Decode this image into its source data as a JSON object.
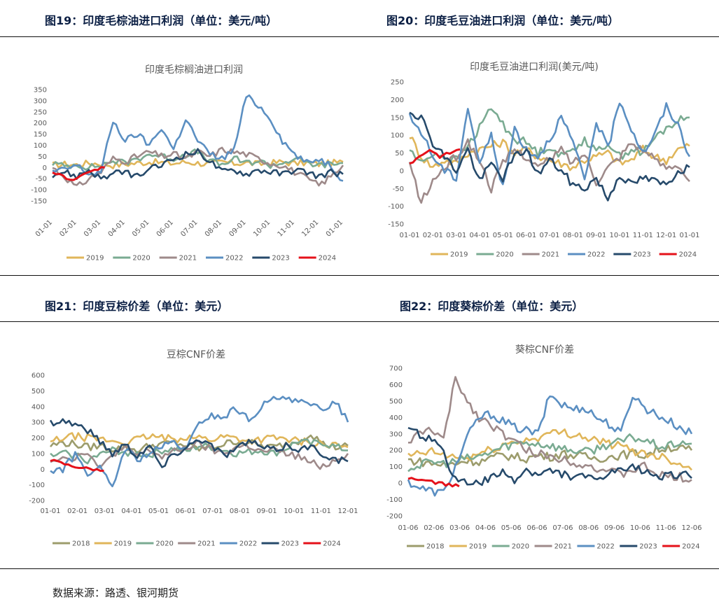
{
  "headers": {
    "fig19": "图19：印度毛棕油进口利润（单位：美元/吨）",
    "fig20": "图20：印度毛豆油进口利润（单位：美元/吨）",
    "fig21": "图21：印度豆棕价差（单位：美元）",
    "fig22": "图22：印度葵棕价差（单位：美元）"
  },
  "source": "数据来源：路透、银河期货",
  "colors": {
    "2018": "#9c9c6c",
    "2019": "#e0b65a",
    "2020": "#7aab92",
    "2021": "#9e8a8a",
    "2022": "#5b8fc2",
    "2023": "#264a6b",
    "2024": "#e5111a"
  },
  "chart_data": [
    {
      "id": "fig19",
      "type": "line",
      "title": "印度毛棕榈油进口利润",
      "ylim": [
        -150,
        350
      ],
      "yticks": [
        -150,
        -100,
        -50,
        0,
        50,
        100,
        150,
        200,
        250,
        300,
        350
      ],
      "x_labels": [
        "01-01",
        "02-01",
        "03-01",
        "04-01",
        "05-01",
        "06-01",
        "07-01",
        "08-01",
        "09-01",
        "10-01",
        "11-01",
        "12-01",
        "01-01"
      ],
      "x_label_rotate": true,
      "series": [
        {
          "name": "2019",
          "values": [
            10,
            15,
            12,
            20,
            18,
            10,
            15,
            20,
            25,
            22,
            18,
            25,
            20,
            15,
            25,
            18,
            22,
            15,
            20,
            25,
            18,
            22,
            15,
            20,
            25
          ]
        },
        {
          "name": "2020",
          "values": [
            20,
            5,
            15,
            0,
            10,
            30,
            20,
            40,
            60,
            50,
            40,
            60,
            70,
            30,
            10,
            40,
            20,
            30,
            10,
            20,
            40,
            20,
            10,
            15,
            20
          ]
        },
        {
          "name": "2021",
          "values": [
            0,
            -40,
            -90,
            -50,
            -20,
            40,
            30,
            50,
            70,
            50,
            60,
            40,
            70,
            50,
            80,
            70,
            60,
            40,
            20,
            10,
            -20,
            -50,
            -80,
            -40,
            10
          ]
        },
        {
          "name": "2022",
          "values": [
            -20,
            -10,
            10,
            -30,
            -20,
            210,
            120,
            150,
            100,
            180,
            80,
            220,
            120,
            60,
            40,
            80,
            320,
            280,
            220,
            120,
            60,
            20,
            40,
            10,
            -60
          ]
        },
        {
          "name": "2023",
          "values": [
            -30,
            -20,
            -40,
            -10,
            -50,
            -30,
            -20,
            -40,
            -10,
            10,
            40,
            60,
            70,
            30,
            -20,
            -10,
            -30,
            -10,
            -20,
            -30,
            -10,
            -20,
            -40,
            -20,
            -30
          ]
        },
        {
          "name": "2024",
          "values": [
            -20,
            -40,
            -60,
            -30,
            -10,
            0
          ]
        }
      ]
    },
    {
      "id": "fig20",
      "type": "line",
      "title": "印度毛豆油进口利润(美元/吨)",
      "ylim": [
        -150,
        250
      ],
      "yticks": [
        -150,
        -100,
        -50,
        0,
        50,
        100,
        150,
        200,
        250
      ],
      "x_labels": [
        "01-01",
        "02-01",
        "03-01",
        "04-01",
        "05-01",
        "06-01",
        "07-01",
        "08-01",
        "09-01",
        "10-01",
        "11-01",
        "12-01",
        "01-01"
      ],
      "x_label_rotate": false,
      "series": [
        {
          "name": "2019",
          "values": [
            100,
            40,
            10,
            30,
            20,
            50,
            60,
            70,
            80,
            50,
            60,
            40,
            30,
            20,
            10,
            30,
            40,
            50,
            20,
            30,
            60,
            40,
            30,
            60,
            70
          ]
        },
        {
          "name": "2020",
          "values": [
            60,
            20,
            50,
            40,
            30,
            70,
            120,
            180,
            130,
            90,
            80,
            50,
            70,
            40,
            60,
            90,
            50,
            80,
            40,
            60,
            50,
            90,
            120,
            140,
            150
          ]
        },
        {
          "name": "2021",
          "values": [
            20,
            -90,
            -30,
            10,
            40,
            80,
            30,
            -50,
            20,
            60,
            40,
            10,
            30,
            60,
            20,
            50,
            -30,
            10,
            40,
            80,
            60,
            30,
            10,
            20,
            -30
          ]
        },
        {
          "name": "2022",
          "values": [
            150,
            110,
            40,
            0,
            -20,
            180,
            20,
            100,
            -50,
            120,
            60,
            40,
            90,
            150,
            80,
            -30,
            140,
            60,
            200,
            120,
            50,
            100,
            180,
            130,
            40
          ]
        },
        {
          "name": "2023",
          "values": [
            170,
            150,
            80,
            40,
            0,
            60,
            -30,
            20,
            -20,
            40,
            60,
            -10,
            30,
            0,
            -40,
            -50,
            -20,
            -80,
            -10,
            -40,
            -20,
            -30,
            -40,
            0,
            10
          ]
        },
        {
          "name": "2024",
          "values": [
            20,
            40,
            60,
            40,
            50,
            60
          ]
        }
      ]
    },
    {
      "id": "fig21",
      "type": "line",
      "title": "豆棕CNF价差",
      "ylim": [
        -200,
        600
      ],
      "yticks": [
        -200,
        -100,
        0,
        100,
        200,
        300,
        400,
        500,
        600
      ],
      "x_labels": [
        "01-01",
        "02-01",
        "03-01",
        "04-01",
        "05-01",
        "06-01",
        "07-01",
        "08-01",
        "09-01",
        "10-01",
        "11-01",
        "12-01"
      ],
      "x_label_rotate": false,
      "series": [
        {
          "name": "2018",
          "values": [
            150,
            170,
            160,
            140,
            150,
            130,
            140,
            120,
            150,
            160,
            170,
            150,
            130,
            140,
            160,
            180,
            170,
            150,
            140,
            160,
            180,
            230,
            160,
            140,
            150
          ]
        },
        {
          "name": "2019",
          "values": [
            170,
            200,
            210,
            200,
            190,
            180,
            170,
            190,
            210,
            200,
            190,
            210,
            200,
            190,
            210,
            200,
            180,
            190,
            200,
            190,
            180,
            170,
            160,
            150,
            140
          ]
        },
        {
          "name": "2020",
          "values": [
            80,
            100,
            90,
            60,
            90,
            120,
            110,
            100,
            90,
            120,
            130,
            110,
            150,
            140,
            120,
            100,
            110,
            120,
            100,
            130,
            180,
            160,
            170,
            140,
            120
          ]
        },
        {
          "name": "2021",
          "values": [
            60,
            80,
            70,
            120,
            -10,
            100,
            130,
            90,
            120,
            80,
            110,
            140,
            160,
            120,
            100,
            140,
            150,
            110,
            120,
            100,
            80,
            40,
            20,
            60,
            100
          ]
        },
        {
          "name": "2022",
          "values": [
            -10,
            0,
            90,
            -20,
            0,
            -120,
            130,
            60,
            100,
            140,
            170,
            120,
            300,
            340,
            330,
            390,
            310,
            400,
            440,
            470,
            430,
            400,
            380,
            440,
            300
          ]
        },
        {
          "name": "2023",
          "values": [
            300,
            310,
            290,
            250,
            180,
            100,
            160,
            90,
            150,
            10,
            100,
            140,
            200,
            150,
            90,
            130,
            180,
            140,
            120,
            150,
            130,
            140,
            100,
            60,
            50
          ]
        },
        {
          "name": "2024",
          "values": [
            60,
            40,
            20,
            10,
            0,
            -10
          ]
        }
      ]
    },
    {
      "id": "fig22",
      "type": "line",
      "title": "葵棕CNF价差",
      "ylim": [
        -200,
        700
      ],
      "yticks": [
        -200,
        -100,
        0,
        100,
        200,
        300,
        400,
        500,
        600,
        700
      ],
      "x_labels": [
        "01-06",
        "02-06",
        "03-06",
        "04-06",
        "05-06",
        "06-06",
        "07-06",
        "08-06",
        "09-06",
        "10-06",
        "11-06",
        "12-06"
      ],
      "x_label_rotate": false,
      "series": [
        {
          "name": "2018",
          "values": [
            140,
            130,
            120,
            110,
            120,
            140,
            130,
            150,
            170,
            160,
            150,
            170,
            160,
            180,
            170,
            160,
            150,
            160,
            170,
            180,
            170,
            200,
            220,
            210,
            200
          ]
        },
        {
          "name": "2019",
          "values": [
            160,
            180,
            190,
            170,
            160,
            150,
            180,
            200,
            230,
            250,
            260,
            280,
            300,
            310,
            300,
            280,
            260,
            240,
            220,
            200,
            180,
            170,
            150,
            120,
            80
          ]
        },
        {
          "name": "2020",
          "values": [
            90,
            110,
            130,
            120,
            130,
            150,
            160,
            190,
            220,
            240,
            250,
            240,
            230,
            210,
            200,
            190,
            210,
            240,
            250,
            280,
            260,
            230,
            220,
            250,
            240
          ]
        },
        {
          "name": "2021",
          "values": [
            250,
            300,
            330,
            260,
            640,
            500,
            400,
            360,
            300,
            250,
            200,
            180,
            160,
            150,
            130,
            110,
            90,
            70,
            50,
            80,
            100,
            60,
            30,
            40,
            20
          ]
        },
        {
          "name": "2022",
          "values": [
            10,
            -30,
            -50,
            -60,
            100,
            280,
            400,
            420,
            380,
            340,
            320,
            300,
            540,
            480,
            450,
            460,
            400,
            360,
            300,
            540,
            460,
            420,
            380,
            340,
            300
          ]
        },
        {
          "name": "2023",
          "values": [
            310,
            300,
            260,
            180,
            20,
            10,
            -10,
            30,
            60,
            20,
            80,
            50,
            70,
            60,
            40,
            30,
            20,
            60,
            70,
            90,
            80,
            50,
            40,
            60,
            30
          ]
        },
        {
          "name": "2024",
          "values": [
            30,
            20,
            10,
            0,
            -10,
            -20
          ]
        }
      ]
    }
  ]
}
